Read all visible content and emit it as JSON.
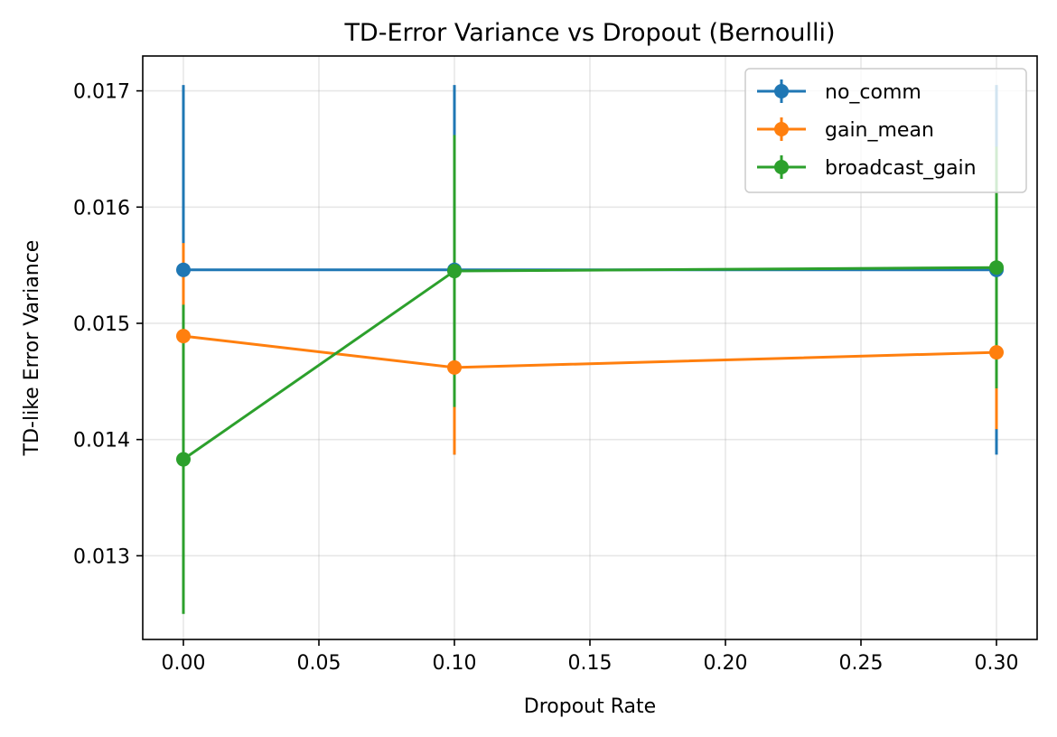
{
  "chart_data": {
    "type": "line",
    "title": "TD-Error Variance vs Dropout (Bernoulli)",
    "xlabel": "Dropout Rate",
    "ylabel": "TD-like Error Variance",
    "xlim": [
      -0.015,
      0.315
    ],
    "ylim": [
      0.01228,
      0.0173
    ],
    "x_ticks": [
      0.0,
      0.05,
      0.1,
      0.15,
      0.2,
      0.25,
      0.3
    ],
    "x_tick_labels": [
      "0.00",
      "0.05",
      "0.10",
      "0.15",
      "0.20",
      "0.25",
      "0.30"
    ],
    "y_ticks": [
      0.013,
      0.014,
      0.015,
      0.016,
      0.017
    ],
    "y_tick_labels": [
      "0.013",
      "0.014",
      "0.015",
      "0.016",
      "0.017"
    ],
    "grid": true,
    "legend_position": "top-right",
    "x": [
      0.0,
      0.1,
      0.3
    ],
    "series": [
      {
        "name": "no_comm",
        "color": "#1f77b4",
        "values": [
          0.01546,
          0.01546,
          0.01546
        ],
        "errors": [
          0.00159,
          0.00159,
          0.00159
        ]
      },
      {
        "name": "gain_mean",
        "color": "#ff7f0e",
        "values": [
          0.01489,
          0.01462,
          0.01475
        ],
        "errors": [
          0.0008,
          0.00075,
          0.00066
        ]
      },
      {
        "name": "broadcast_gain",
        "color": "#2ca02c",
        "values": [
          0.01383,
          0.01545,
          0.01548
        ],
        "errors": [
          0.00133,
          0.00117,
          0.00104
        ]
      }
    ]
  }
}
